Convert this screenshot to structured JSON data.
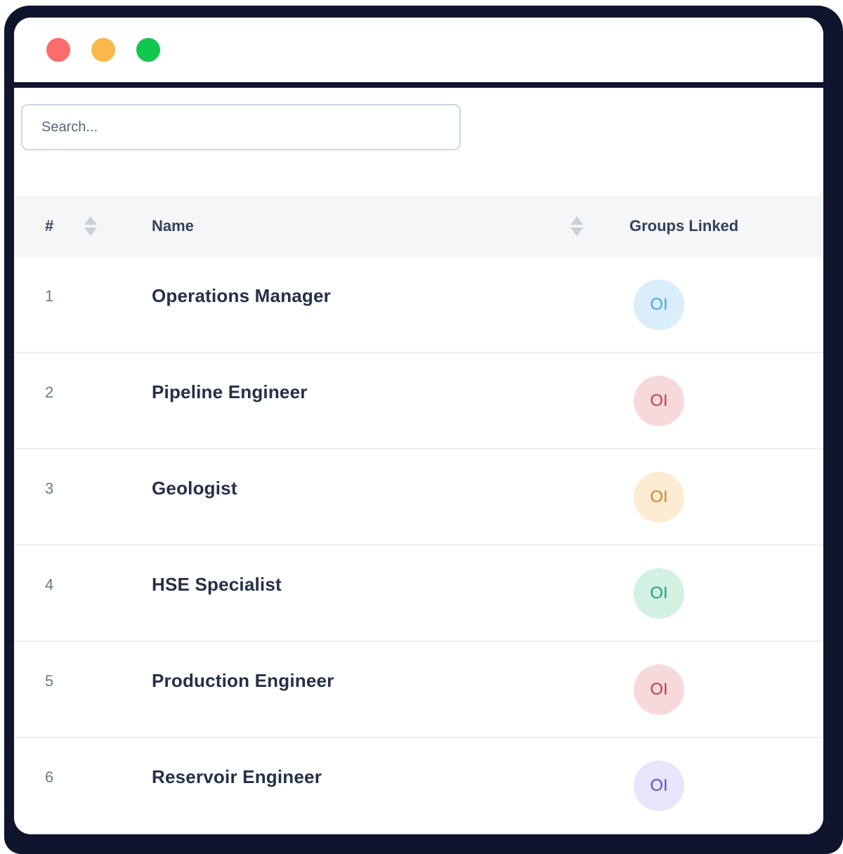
{
  "window": {
    "traffic_lights": [
      {
        "name": "close",
        "color": "#fa6b6b"
      },
      {
        "name": "minimize",
        "color": "#fbb84a"
      },
      {
        "name": "maximize",
        "color": "#12c74e"
      }
    ],
    "frame_color": "#0e152c"
  },
  "search": {
    "placeholder": "Search..."
  },
  "table": {
    "columns": [
      {
        "key": "index",
        "label": "#",
        "sortable": true
      },
      {
        "key": "name",
        "label": "Name",
        "sortable": true
      },
      {
        "key": "groups",
        "label": "Groups Linked",
        "sortable": false
      }
    ],
    "rows": [
      {
        "index": "1",
        "name": "Operations Manager",
        "badge": {
          "label": "OI",
          "bg": "#d9edfb",
          "color": "#4ba6dd"
        }
      },
      {
        "index": "2",
        "name": "Pipeline Engineer",
        "badge": {
          "label": "OI",
          "bg": "#f8d9db",
          "color": "#bb3f4d"
        }
      },
      {
        "index": "3",
        "name": "Geologist",
        "badge": {
          "label": "OI",
          "bg": "#fdebd2",
          "color": "#c9882f"
        }
      },
      {
        "index": "4",
        "name": "HSE Specialist",
        "badge": {
          "label": "OI",
          "bg": "#d2f1e3",
          "color": "#18a478"
        }
      },
      {
        "index": "5",
        "name": "Production Engineer",
        "badge": {
          "label": "OI",
          "bg": "#f8d9db",
          "color": "#bb3f4d"
        }
      },
      {
        "index": "6",
        "name": "Reservoir Engineer",
        "badge": {
          "label": "OI",
          "bg": "#e7e4fb",
          "color": "#5a50cc"
        }
      }
    ]
  }
}
